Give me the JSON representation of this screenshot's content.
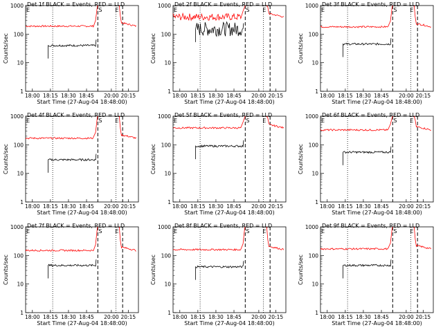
{
  "chart_data": {
    "type": "line",
    "ylabel": "Counts/sec",
    "xlabel": "Start Time (27-Aug-04 18:48:00)",
    "x_ticks": [
      "18:00",
      "18:15",
      "18:30",
      "18:45",
      "20:00",
      "20:15"
    ],
    "y_scale": "log",
    "ylim": [
      1,
      1000
    ],
    "y_ticks": [
      "1",
      "10",
      "100",
      "1000"
    ],
    "marker_labels": {
      "start": "E",
      "shadow": "S"
    },
    "series_colors": {
      "events": "#000000",
      "lld": "#ff0000"
    },
    "panels": [
      {
        "title": "Det 1f BLACK = Events, RED = LLD",
        "events_level": 40,
        "lld_level": 190,
        "noisy": false
      },
      {
        "title": "Det 2f BLACK = Events, RED = LLD",
        "events_level": 150,
        "lld_level": 400,
        "noisy": true
      },
      {
        "title": "Det 3f BLACK = Events, RED = LLD",
        "events_level": 45,
        "lld_level": 180,
        "noisy": false
      },
      {
        "title": "Det 4f BLACK = Events, RED = LLD",
        "events_level": 30,
        "lld_level": 170,
        "noisy": false
      },
      {
        "title": "Det 5f BLACK = Events, RED = LLD",
        "events_level": 90,
        "lld_level": 390,
        "noisy": false
      },
      {
        "title": "Det 6f BLACK = Events, RED = LLD",
        "events_level": 55,
        "lld_level": 330,
        "noisy": false
      },
      {
        "title": "Det 7f BLACK = Events, RED = LLD",
        "events_level": 45,
        "lld_level": 150,
        "noisy": false
      },
      {
        "title": "Det 8f BLACK = Events, RED = LLD",
        "events_level": 40,
        "lld_level": 160,
        "noisy": false
      },
      {
        "title": "Det 9f BLACK = Events, RED = LLD",
        "events_level": 45,
        "lld_level": 170,
        "noisy": false
      }
    ]
  }
}
